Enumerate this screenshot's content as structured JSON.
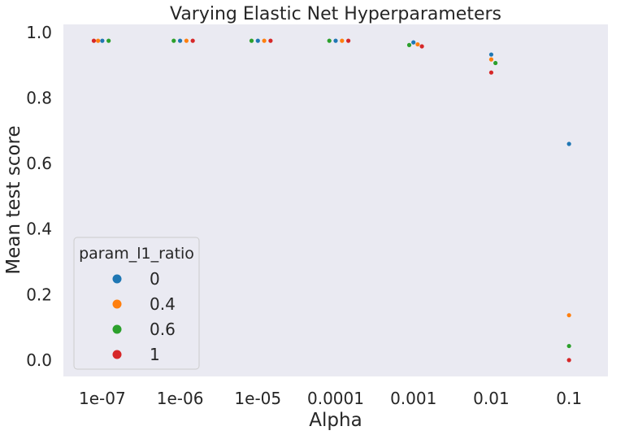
{
  "chart_data": {
    "type": "scatter",
    "title": "Varying Elastic Net Hyperparameters",
    "xlabel": "Alpha",
    "ylabel": "Mean test score",
    "categories": [
      "1e-07",
      "1e-06",
      "1e-05",
      "0.0001",
      "0.001",
      "0.01",
      "0.1"
    ],
    "ylim": [
      -0.05,
      1.025
    ],
    "yticks": [
      0.0,
      0.2,
      0.4,
      0.6,
      0.8,
      1.0
    ],
    "ytick_labels": [
      "0.0",
      "0.2",
      "0.4",
      "0.6",
      "0.8",
      "1.0"
    ],
    "grid": false,
    "background": "#eaeaf2",
    "legend": {
      "title": "param_l1_ratio",
      "placement": "lower-left",
      "entries": [
        "0",
        "0.4",
        "0.6",
        "1"
      ]
    },
    "series": [
      {
        "name": "0",
        "color": "#1f77b4",
        "values": [
          0.975,
          0.975,
          0.975,
          0.975,
          0.97,
          0.933,
          0.66
        ]
      },
      {
        "name": "0.4",
        "color": "#ff7f0e",
        "values": [
          0.975,
          0.975,
          0.975,
          0.975,
          0.964,
          0.918,
          0.137
        ]
      },
      {
        "name": "0.6",
        "color": "#2ca02c",
        "values": [
          0.975,
          0.975,
          0.975,
          0.975,
          0.962,
          0.907,
          0.043
        ]
      },
      {
        "name": "1",
        "color": "#d62728",
        "values": [
          0.975,
          0.975,
          0.975,
          0.975,
          0.958,
          0.878,
          0.0
        ]
      }
    ]
  }
}
